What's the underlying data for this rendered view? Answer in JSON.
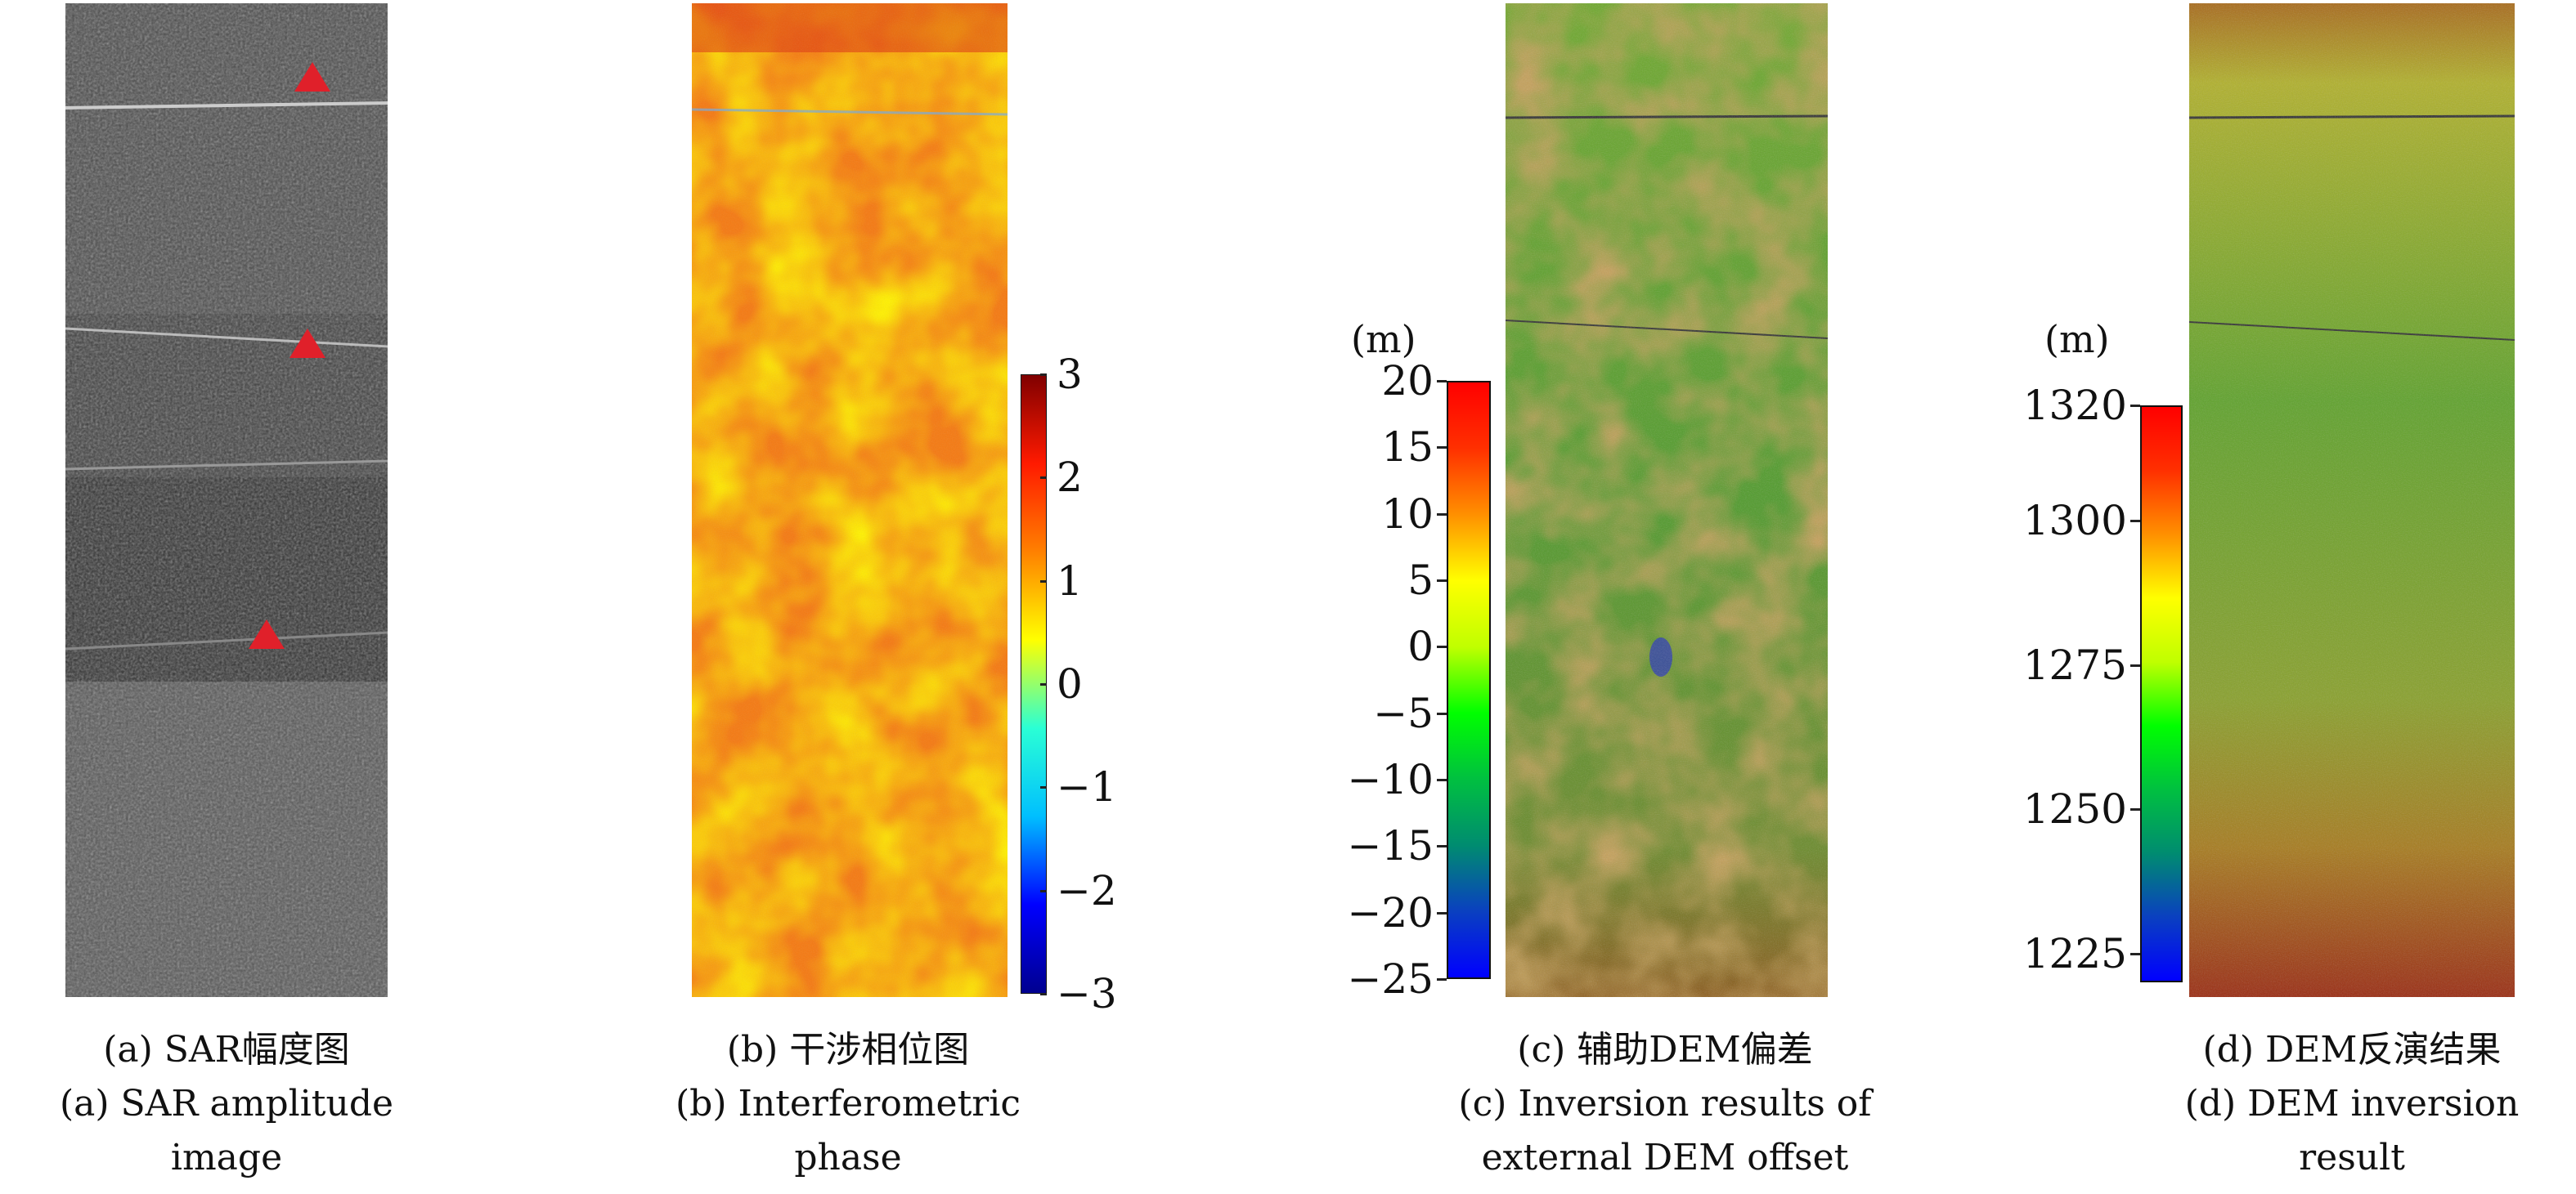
{
  "panels": [
    {
      "id": "a",
      "caption_zh": "(a) SAR幅度图",
      "caption_en_1": "(a) SAR amplitude",
      "caption_en_2": "image"
    },
    {
      "id": "b",
      "caption_zh": "(b) 干涉相位图",
      "caption_en_1": "(b) Interferometric",
      "caption_en_2": "phase"
    },
    {
      "id": "c",
      "caption_zh": "(c) 辅助DEM偏差",
      "caption_en_1": "(c) Inversion results of",
      "caption_en_2": "external DEM offset"
    },
    {
      "id": "d",
      "caption_zh": "(d) DEM反演结果",
      "caption_en_1": "(d) DEM inversion",
      "caption_en_2": "result"
    }
  ],
  "chart_data": [
    {
      "type": "heatmap",
      "panel": "b",
      "colorbar": {
        "range": [
          -3,
          3
        ],
        "ticks": [
          3,
          2,
          1,
          0,
          -1,
          -2,
          -3
        ],
        "tick_labels": [
          "3",
          "2",
          "1",
          "0",
          "−1",
          "−2",
          "−3"
        ],
        "unit": "",
        "colormap": [
          "#00008f",
          "#0000ff",
          "#00bfff",
          "#2affd5",
          "#ffff00",
          "#ff8000",
          "#ff1a00",
          "#800000"
        ]
      }
    },
    {
      "type": "heatmap",
      "panel": "c",
      "colorbar": {
        "range": [
          -25,
          20
        ],
        "ticks": [
          20,
          15,
          10,
          5,
          0,
          -5,
          -10,
          -15,
          -20,
          -25
        ],
        "tick_labels": [
          "20",
          "15",
          "10",
          "5",
          "0",
          "−5",
          "−10",
          "−15",
          "−20",
          "−25"
        ],
        "unit": "(m)",
        "colormap": [
          "#0000ff",
          "#0a40c0",
          "#008c70",
          "#00c040",
          "#00ff00",
          "#c0ff00",
          "#ffff00",
          "#ff9000",
          "#ff3000",
          "#ff0000"
        ]
      }
    },
    {
      "type": "heatmap",
      "panel": "d",
      "colorbar": {
        "range": [
          1220,
          1320
        ],
        "ticks": [
          1320,
          1300,
          1275,
          1250,
          1225
        ],
        "tick_labels": [
          "1320",
          "1300",
          "1275",
          "1250",
          "1225"
        ],
        "unit": "(m)",
        "colormap": [
          "#0000ff",
          "#0a40c0",
          "#008c70",
          "#00c040",
          "#00ff00",
          "#c0ff00",
          "#ffff00",
          "#ff9000",
          "#ff3000",
          "#ff0000"
        ]
      }
    }
  ],
  "colors": {
    "marker": "#e0202a"
  }
}
